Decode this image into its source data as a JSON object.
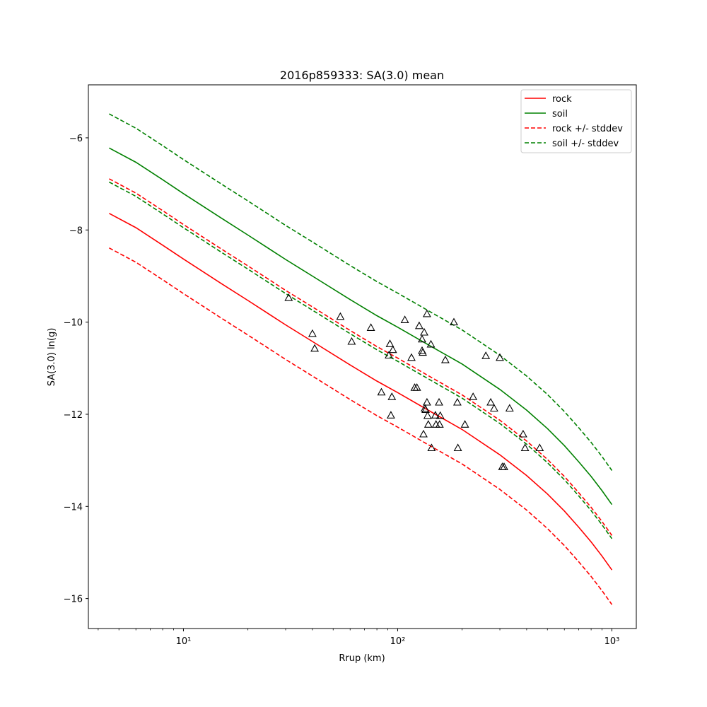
{
  "chart_data": {
    "type": "line",
    "title": "2016p859333: SA(3.0) mean",
    "xlabel": "Rrup (km)",
    "ylabel": "SA(3.0) ln(g)",
    "x_scale": "log",
    "xlim": [
      3.6,
      1300
    ],
    "ylim": [
      -16.65,
      -4.85
    ],
    "x_ticks": [
      {
        "value": 10,
        "label": "10¹"
      },
      {
        "value": 100,
        "label": "10²"
      },
      {
        "value": 1000,
        "label": "10³"
      }
    ],
    "y_ticks": [
      -16,
      -14,
      -12,
      -10,
      -8,
      -6
    ],
    "grid": false,
    "legend_position": "top-right",
    "series": [
      {
        "name": "rock",
        "color": "#ff0000",
        "style": "solid",
        "points": [
          [
            4.5,
            -7.64
          ],
          [
            6,
            -7.95
          ],
          [
            8,
            -8.33
          ],
          [
            10,
            -8.63
          ],
          [
            15,
            -9.16
          ],
          [
            20,
            -9.53
          ],
          [
            30,
            -10.06
          ],
          [
            40,
            -10.42
          ],
          [
            60,
            -10.93
          ],
          [
            80,
            -11.28
          ],
          [
            100,
            -11.53
          ],
          [
            150,
            -12.0
          ],
          [
            200,
            -12.33
          ],
          [
            300,
            -12.88
          ],
          [
            400,
            -13.33
          ],
          [
            500,
            -13.73
          ],
          [
            600,
            -14.1
          ],
          [
            700,
            -14.45
          ],
          [
            800,
            -14.77
          ],
          [
            900,
            -15.08
          ],
          [
            1000,
            -15.38
          ]
        ]
      },
      {
        "name": "soil",
        "color": "#008000",
        "style": "solid",
        "points": [
          [
            4.5,
            -6.22
          ],
          [
            6,
            -6.53
          ],
          [
            8,
            -6.91
          ],
          [
            10,
            -7.21
          ],
          [
            15,
            -7.74
          ],
          [
            20,
            -8.11
          ],
          [
            30,
            -8.64
          ],
          [
            40,
            -9.0
          ],
          [
            60,
            -9.51
          ],
          [
            80,
            -9.86
          ],
          [
            100,
            -10.11
          ],
          [
            150,
            -10.58
          ],
          [
            200,
            -10.91
          ],
          [
            300,
            -11.46
          ],
          [
            400,
            -11.91
          ],
          [
            500,
            -12.31
          ],
          [
            600,
            -12.68
          ],
          [
            700,
            -13.03
          ],
          [
            800,
            -13.35
          ],
          [
            900,
            -13.66
          ],
          [
            1000,
            -13.96
          ]
        ]
      },
      {
        "name": "rock +/- stddev",
        "color": "#ff0000",
        "style": "dashed",
        "points": [
          [
            4.5,
            -6.89
          ],
          [
            6,
            -7.2
          ],
          [
            8,
            -7.58
          ],
          [
            10,
            -7.88
          ],
          [
            15,
            -8.41
          ],
          [
            20,
            -8.78
          ],
          [
            30,
            -9.31
          ],
          [
            40,
            -9.67
          ],
          [
            60,
            -10.18
          ],
          [
            80,
            -10.53
          ],
          [
            100,
            -10.78
          ],
          [
            150,
            -11.25
          ],
          [
            200,
            -11.58
          ],
          [
            300,
            -12.13
          ],
          [
            400,
            -12.58
          ],
          [
            500,
            -12.98
          ],
          [
            600,
            -13.35
          ],
          [
            700,
            -13.7
          ],
          [
            800,
            -14.02
          ],
          [
            900,
            -14.33
          ],
          [
            1000,
            -14.63
          ]
        ]
      },
      {
        "name": "",
        "color": "#ff0000",
        "style": "dashed",
        "points": [
          [
            4.5,
            -8.39
          ],
          [
            6,
            -8.7
          ],
          [
            8,
            -9.08
          ],
          [
            10,
            -9.38
          ],
          [
            15,
            -9.91
          ],
          [
            20,
            -10.28
          ],
          [
            30,
            -10.81
          ],
          [
            40,
            -11.17
          ],
          [
            60,
            -11.68
          ],
          [
            80,
            -12.03
          ],
          [
            100,
            -12.28
          ],
          [
            150,
            -12.75
          ],
          [
            200,
            -13.08
          ],
          [
            300,
            -13.63
          ],
          [
            400,
            -14.08
          ],
          [
            500,
            -14.48
          ],
          [
            600,
            -14.85
          ],
          [
            700,
            -15.2
          ],
          [
            800,
            -15.52
          ],
          [
            900,
            -15.83
          ],
          [
            1000,
            -16.13
          ]
        ]
      },
      {
        "name": "soil +/- stddev",
        "color": "#008000",
        "style": "dashed",
        "points": [
          [
            4.5,
            -5.48
          ],
          [
            6,
            -5.79
          ],
          [
            8,
            -6.17
          ],
          [
            10,
            -6.47
          ],
          [
            15,
            -7.0
          ],
          [
            20,
            -7.37
          ],
          [
            30,
            -7.9
          ],
          [
            40,
            -8.26
          ],
          [
            60,
            -8.77
          ],
          [
            80,
            -9.12
          ],
          [
            100,
            -9.37
          ],
          [
            150,
            -9.84
          ],
          [
            200,
            -10.17
          ],
          [
            300,
            -10.72
          ],
          [
            400,
            -11.17
          ],
          [
            500,
            -11.57
          ],
          [
            600,
            -11.94
          ],
          [
            700,
            -12.29
          ],
          [
            800,
            -12.61
          ],
          [
            900,
            -12.92
          ],
          [
            1000,
            -13.22
          ]
        ]
      },
      {
        "name": "",
        "color": "#008000",
        "style": "dashed",
        "points": [
          [
            4.5,
            -6.96
          ],
          [
            6,
            -7.27
          ],
          [
            8,
            -7.65
          ],
          [
            10,
            -7.95
          ],
          [
            15,
            -8.48
          ],
          [
            20,
            -8.85
          ],
          [
            30,
            -9.38
          ],
          [
            40,
            -9.74
          ],
          [
            60,
            -10.25
          ],
          [
            80,
            -10.6
          ],
          [
            100,
            -10.85
          ],
          [
            150,
            -11.32
          ],
          [
            200,
            -11.65
          ],
          [
            300,
            -12.2
          ],
          [
            400,
            -12.65
          ],
          [
            500,
            -13.05
          ],
          [
            600,
            -13.42
          ],
          [
            700,
            -13.77
          ],
          [
            800,
            -14.09
          ],
          [
            900,
            -14.4
          ],
          [
            1000,
            -14.7
          ]
        ]
      }
    ],
    "observations": {
      "marker": "open-triangle",
      "color": "#000000",
      "points": [
        [
          31,
          -9.47
        ],
        [
          40,
          -10.25
        ],
        [
          41,
          -10.57
        ],
        [
          54,
          -9.88
        ],
        [
          61,
          -10.42
        ],
        [
          75,
          -10.12
        ],
        [
          84,
          -11.52
        ],
        [
          91,
          -10.72
        ],
        [
          92,
          -10.47
        ],
        [
          93,
          -12.02
        ],
        [
          94,
          -11.62
        ],
        [
          95,
          -10.6
        ],
        [
          108,
          -9.95
        ],
        [
          116,
          -10.77
        ],
        [
          120,
          -11.42
        ],
        [
          123,
          -11.42
        ],
        [
          126,
          -10.08
        ],
        [
          130,
          -10.62
        ],
        [
          130,
          -10.37
        ],
        [
          131,
          -10.66
        ],
        [
          132,
          -12.43
        ],
        [
          133,
          -10.22
        ],
        [
          134,
          -11.87
        ],
        [
          135,
          -11.9
        ],
        [
          137,
          -9.82
        ],
        [
          137,
          -11.74
        ],
        [
          138,
          -12.03
        ],
        [
          139,
          -12.22
        ],
        [
          143,
          -10.48
        ],
        [
          144,
          -12.73
        ],
        [
          150,
          -12.02
        ],
        [
          151,
          -12.22
        ],
        [
          156,
          -11.74
        ],
        [
          157,
          -12.22
        ],
        [
          158,
          -12.03
        ],
        [
          167,
          -10.82
        ],
        [
          183,
          -10.0
        ],
        [
          190,
          -11.74
        ],
        [
          191,
          -12.73
        ],
        [
          206,
          -12.22
        ],
        [
          225,
          -11.62
        ],
        [
          258,
          -10.73
        ],
        [
          272,
          -11.74
        ],
        [
          282,
          -11.87
        ],
        [
          300,
          -10.77
        ],
        [
          308,
          -13.14
        ],
        [
          314,
          -13.14
        ],
        [
          333,
          -11.87
        ],
        [
          385,
          -12.43
        ],
        [
          393,
          -12.73
        ],
        [
          460,
          -12.73
        ]
      ]
    }
  }
}
